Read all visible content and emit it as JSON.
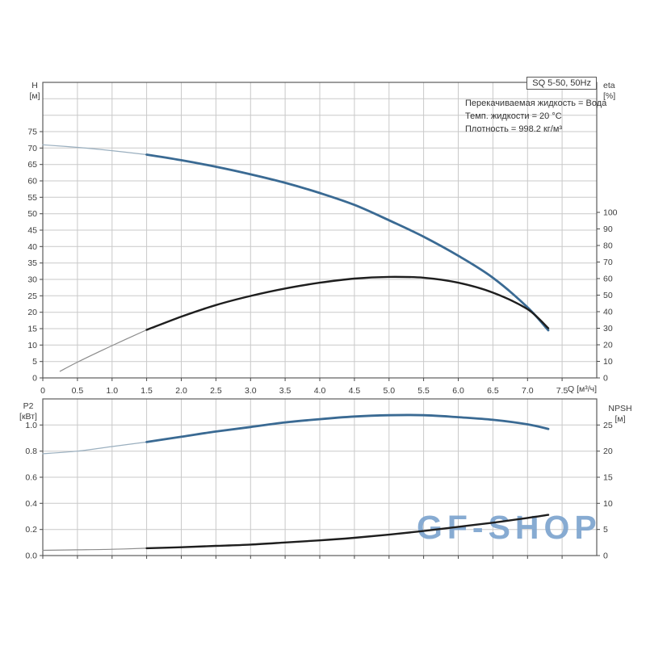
{
  "watermark": "GF-SHOP",
  "info_lines": [
    "Перекачиваемая жидкость = Вода",
    "Темп. жидкости = 20 °C",
    "Плотность = 998.2 кг/м³"
  ],
  "colors": {
    "curve_blue": "#3a6a93",
    "curve_black": "#1e1e1e",
    "thin_blue": "#9aafbf",
    "thin_black": "#8c8c8c",
    "grid": "#c9c9c9",
    "frame": "#5c5c5c",
    "tick": "#4a4a4a",
    "text": "#3c3c3c",
    "watermark": "#7da4cf"
  },
  "chart_data": [
    {
      "type": "line",
      "title": "SQ 5-50, 50Hz",
      "x_axis": {
        "label": "Q [м³/ч]",
        "range": [
          0,
          8
        ],
        "grid_step": 0.5,
        "tick_values": [
          0,
          0.5,
          1,
          1.5,
          2,
          2.5,
          3,
          3.5,
          4,
          4.5,
          5,
          5.5,
          6,
          6.5,
          7,
          7.5
        ],
        "tick_labels": [
          "0",
          "0.5",
          "1.0",
          "1.5",
          "2.0",
          "2.5",
          "3.0",
          "3.5",
          "4.0",
          "4.5",
          "5.0",
          "5.5",
          "6.0",
          "6.5",
          "7.0",
          "7.5"
        ]
      },
      "left_axis": {
        "label": "H",
        "unit": "[м]",
        "range": [
          0,
          90
        ],
        "grid_step": 5,
        "tick_values": [
          0,
          5,
          10,
          15,
          20,
          25,
          30,
          35,
          40,
          45,
          50,
          55,
          60,
          65,
          70,
          75
        ],
        "tick_labels": [
          "0",
          "5",
          "10",
          "15",
          "20",
          "25",
          "30",
          "35",
          "40",
          "45",
          "50",
          "55",
          "60",
          "65",
          "70",
          "75"
        ]
      },
      "right_axis": {
        "label": "eta",
        "unit": "[%]",
        "range": [
          0,
          178.5
        ],
        "tick_values": [
          0,
          10,
          20,
          30,
          40,
          50,
          60,
          70,
          80,
          90,
          100
        ],
        "tick_labels": [
          "0",
          "10",
          "20",
          "30",
          "40",
          "50",
          "60",
          "70",
          "80",
          "90",
          "100"
        ]
      },
      "series": [
        {
          "name": "H",
          "axis": "left",
          "color_key": "blue",
          "thick_from": 1.5,
          "points": [
            [
              0,
              71
            ],
            [
              0.5,
              70.2
            ],
            [
              1,
              69.2
            ],
            [
              1.5,
              68
            ],
            [
              2,
              66.3
            ],
            [
              2.5,
              64.3
            ],
            [
              3,
              62
            ],
            [
              3.5,
              59.4
            ],
            [
              4,
              56.3
            ],
            [
              4.5,
              52.7
            ],
            [
              5,
              48
            ],
            [
              5.5,
              43
            ],
            [
              6,
              37.2
            ],
            [
              6.5,
              30.5
            ],
            [
              7,
              21.5
            ],
            [
              7.3,
              14.5
            ]
          ]
        },
        {
          "name": "eta",
          "axis": "right",
          "color_key": "black",
          "thick_from": 1.5,
          "points": [
            [
              0.25,
              4
            ],
            [
              0.5,
              9.5
            ],
            [
              1,
              19.5
            ],
            [
              1.5,
              29
            ],
            [
              2,
              37
            ],
            [
              2.5,
              44
            ],
            [
              3,
              49.5
            ],
            [
              3.5,
              54
            ],
            [
              4,
              57.5
            ],
            [
              4.5,
              60
            ],
            [
              5,
              61
            ],
            [
              5.5,
              60.5
            ],
            [
              6,
              57.5
            ],
            [
              6.5,
              51.5
            ],
            [
              7,
              41.5
            ],
            [
              7.3,
              30
            ]
          ]
        }
      ]
    },
    {
      "type": "line",
      "title": "",
      "x_axis": {
        "label": "",
        "range": [
          0,
          8
        ],
        "grid_step": 0.5,
        "tick_values": [
          0,
          0.5,
          1,
          1.5,
          2,
          2.5,
          3,
          3.5,
          4,
          4.5,
          5,
          5.5,
          6,
          6.5,
          7,
          7.5
        ],
        "tick_labels": []
      },
      "left_axis": {
        "label": "P2",
        "unit": "[кВт]",
        "range": [
          0,
          1.2
        ],
        "grid_step": 0.2,
        "tick_values": [
          0,
          0.2,
          0.4,
          0.6,
          0.8,
          1.0
        ],
        "tick_labels": [
          "0.0",
          "0.2",
          "0.4",
          "0.6",
          "0.8",
          "1.0"
        ]
      },
      "right_axis": {
        "label": "NPSH",
        "unit": "[м]",
        "range": [
          0,
          30
        ],
        "tick_values": [
          0,
          5,
          10,
          15,
          20,
          25
        ],
        "tick_labels": [
          "0",
          "5",
          "10",
          "15",
          "20",
          "25"
        ]
      },
      "series": [
        {
          "name": "P2",
          "axis": "left",
          "color_key": "blue",
          "thick_from": 1.5,
          "points": [
            [
              0,
              0.78
            ],
            [
              0.5,
              0.8
            ],
            [
              1,
              0.835
            ],
            [
              1.5,
              0.87
            ],
            [
              2,
              0.91
            ],
            [
              2.5,
              0.95
            ],
            [
              3,
              0.985
            ],
            [
              3.5,
              1.02
            ],
            [
              4,
              1.045
            ],
            [
              4.5,
              1.065
            ],
            [
              5,
              1.075
            ],
            [
              5.5,
              1.075
            ],
            [
              6,
              1.06
            ],
            [
              6.5,
              1.04
            ],
            [
              7,
              1.005
            ],
            [
              7.3,
              0.97
            ]
          ]
        },
        {
          "name": "NPSH",
          "axis": "right",
          "color_key": "black",
          "thick_from": 1.5,
          "points": [
            [
              0,
              1
            ],
            [
              0.5,
              1.1
            ],
            [
              1,
              1.2
            ],
            [
              1.5,
              1.4
            ],
            [
              2,
              1.6
            ],
            [
              2.5,
              1.85
            ],
            [
              3,
              2.1
            ],
            [
              3.5,
              2.5
            ],
            [
              4,
              2.9
            ],
            [
              4.5,
              3.4
            ],
            [
              5,
              4
            ],
            [
              5.5,
              4.7
            ],
            [
              6,
              5.5
            ],
            [
              6.5,
              6.3
            ],
            [
              7,
              7.2
            ],
            [
              7.3,
              7.8
            ]
          ]
        }
      ]
    }
  ]
}
